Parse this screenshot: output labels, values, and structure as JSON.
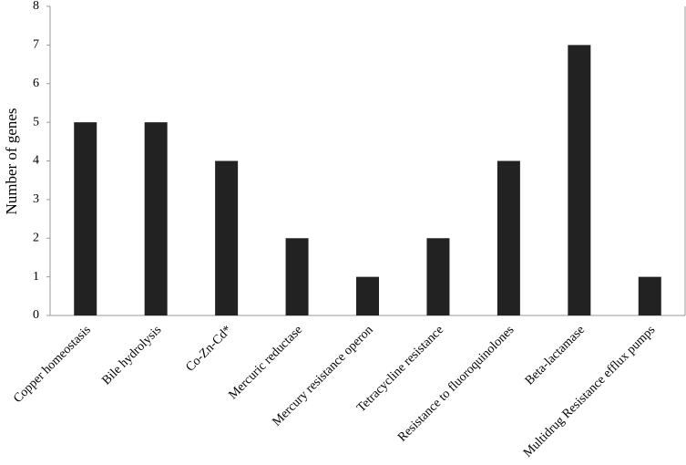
{
  "chart_data": {
    "type": "bar",
    "y_label": "Number of genes",
    "categories": [
      "Copper homeostasis",
      "Bile hydrolysis",
      "Co-Zn-Cd*",
      "Mercuric reductase",
      "Mercury resistance operon",
      "Tetracycline resistance",
      "Resistance to fluoroquinolones",
      "Beta-lactamase",
      "Multidrug Resistance efflux pumps"
    ],
    "values": [
      5,
      5,
      4,
      2,
      1,
      2,
      4,
      7,
      1
    ],
    "color": "#222222",
    "ylim": [
      0,
      8
    ],
    "yticks": [
      0,
      1,
      2,
      3,
      4,
      5,
      6,
      7,
      8
    ]
  }
}
